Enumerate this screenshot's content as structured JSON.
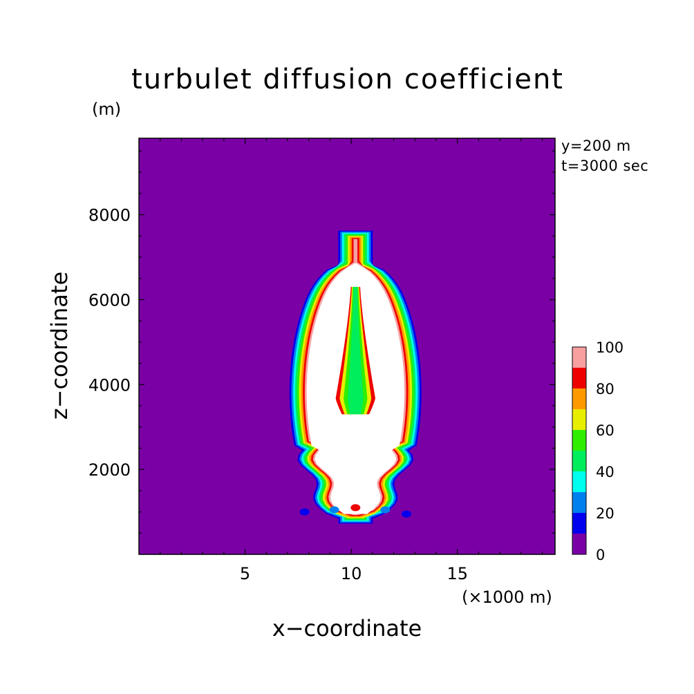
{
  "chart_data": {
    "type": "contour",
    "title": "turbulet diffusion coefficient",
    "xlabel": "x−coordinate",
    "ylabel": "z−coordinate",
    "x_unit": "(×1000 m)",
    "y_unit": "(m)",
    "xlim": [
      0,
      19.6
    ],
    "ylim": [
      0,
      9800
    ],
    "x_ticks": [
      5,
      10,
      15
    ],
    "y_ticks": [
      2000,
      4000,
      6000,
      8000
    ],
    "annotations": [
      "y=200 m",
      "t=3000 sec"
    ],
    "colorbar": {
      "levels": [
        0,
        10,
        20,
        30,
        40,
        50,
        60,
        70,
        80,
        90,
        100
      ],
      "tick_labels": [
        "0",
        "20",
        "40",
        "60",
        "80",
        "100"
      ],
      "colors": [
        "#7a00a6",
        "#0000ee",
        "#0080ee",
        "#00ffee",
        "#00ee5c",
        "#30ee00",
        "#e8ee00",
        "#ff9900",
        "#ee0000",
        "#f8a0a0"
      ],
      "above_max_color": "#ffffff"
    },
    "plume": {
      "x_center": 10.2,
      "base_z": 950,
      "top_z": 7400,
      "max_half_width_x1000m": 2.3,
      "inner_low_core_z": [
        3300,
        6300
      ]
    }
  }
}
